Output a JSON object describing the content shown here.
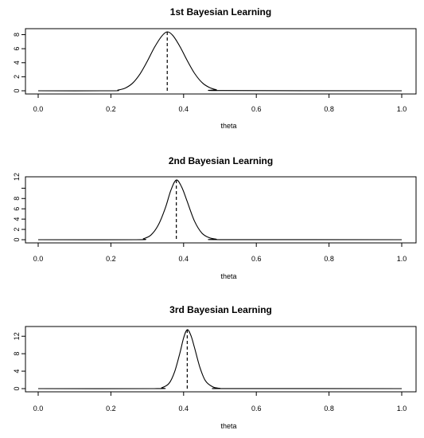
{
  "chart_data": [
    {
      "type": "line",
      "title": "1st Bayesian Learning",
      "xlabel": "theta",
      "ylabel": "",
      "xlim": [
        0,
        1
      ],
      "ylim": [
        0,
        8.4
      ],
      "xticks": [
        0.0,
        0.2,
        0.4,
        0.6,
        0.8,
        1.0
      ],
      "xtick_labels": [
        "0.0",
        "0.2",
        "0.4",
        "0.6",
        "0.8",
        "1.0"
      ],
      "yticks": [
        0,
        2,
        4,
        6,
        8
      ],
      "ytick_labels": [
        "0",
        "2",
        "4",
        "6",
        "8"
      ],
      "mode_line_x": 0.355,
      "series": [
        {
          "x": [
            0.0,
            0.2,
            0.22,
            0.24,
            0.26,
            0.28,
            0.3,
            0.32,
            0.34,
            0.355,
            0.37,
            0.39,
            0.41,
            0.43,
            0.45,
            0.47,
            0.49,
            0.51,
            1.0
          ],
          "y": [
            0,
            0,
            0.1,
            0.4,
            1.1,
            2.4,
            4.2,
            6.2,
            7.8,
            8.4,
            7.9,
            6.3,
            4.3,
            2.5,
            1.2,
            0.5,
            0.15,
            0.03,
            0
          ]
        }
      ]
    },
    {
      "type": "line",
      "title": "2nd Bayesian Learning",
      "xlabel": "theta",
      "ylabel": "",
      "xlim": [
        0,
        1
      ],
      "ylim": [
        0,
        11.6
      ],
      "xticks": [
        0.0,
        0.2,
        0.4,
        0.6,
        0.8,
        1.0
      ],
      "xtick_labels": [
        "0.0",
        "0.2",
        "0.4",
        "0.6",
        "0.8",
        "1.0"
      ],
      "yticks": [
        0,
        2,
        4,
        6,
        8,
        10
      ],
      "ytick_labels": [
        "0",
        "2",
        "4",
        "6",
        "8",
        ""
      ],
      "ytick_extra_label": "12",
      "mode_line_x": 0.38,
      "series": [
        {
          "x": [
            0.0,
            0.27,
            0.29,
            0.31,
            0.33,
            0.35,
            0.365,
            0.38,
            0.395,
            0.41,
            0.43,
            0.45,
            0.47,
            0.49,
            0.51,
            1.0
          ],
          "y": [
            0,
            0,
            0.2,
            0.9,
            2.8,
            6.2,
            9.6,
            11.6,
            10.2,
            7.4,
            3.6,
            1.3,
            0.4,
            0.1,
            0.02,
            0
          ]
        }
      ]
    },
    {
      "type": "line",
      "title": "3rd Bayesian Learning",
      "xlabel": "theta",
      "ylabel": "",
      "xlim": [
        0,
        1
      ],
      "ylim": [
        0,
        13.5
      ],
      "xticks": [
        0.0,
        0.2,
        0.4,
        0.6,
        0.8,
        1.0
      ],
      "xtick_labels": [
        "0.0",
        "0.2",
        "0.4",
        "0.6",
        "0.8",
        "1.0"
      ],
      "yticks": [
        0,
        4,
        8,
        12
      ],
      "ytick_labels": [
        "0",
        "4",
        "8",
        "12"
      ],
      "mode_line_x": 0.41,
      "series": [
        {
          "x": [
            0.0,
            0.32,
            0.34,
            0.36,
            0.375,
            0.39,
            0.4,
            0.41,
            0.42,
            0.43,
            0.445,
            0.46,
            0.48,
            0.5,
            0.52,
            1.0
          ],
          "y": [
            0,
            0,
            0.2,
            1.2,
            3.8,
            8.2,
            11.6,
            13.5,
            12.2,
            9.4,
            4.8,
            1.8,
            0.4,
            0.08,
            0.01,
            0
          ]
        }
      ]
    }
  ]
}
